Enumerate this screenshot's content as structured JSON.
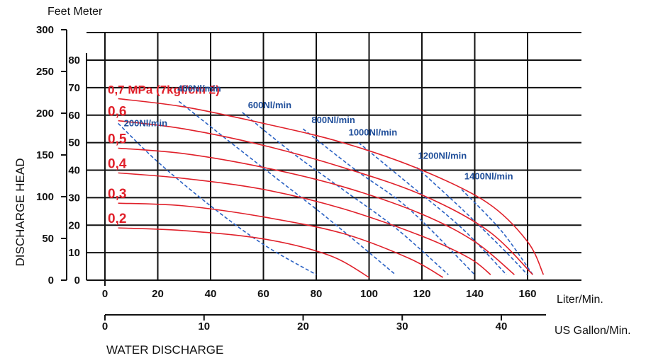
{
  "colors": {
    "pressure_curve": "#e0202a",
    "air_curve": "#2b62c4",
    "air_label": "#1f4e9a",
    "grid": "#111111"
  },
  "labels": {
    "y_title": "DISCHARGE HEAD",
    "y_unit_header": "Feet  Meter",
    "x_unit_primary": "Liter/Min.",
    "x_unit_secondary": "US Gallon/Min.",
    "x_title": "WATER DISCHARGE"
  },
  "chart_data": {
    "type": "line",
    "title": "",
    "xlabel": "WATER DISCHARGE",
    "ylabel": "DISCHARGE HEAD",
    "grid": true,
    "legend": "none",
    "axes": {
      "x_liter": {
        "unit": "Liter/Min.",
        "range": [
          0,
          160
        ],
        "ticks": [
          "0",
          "20",
          "40",
          "60",
          "80",
          "100",
          "120",
          "140",
          "160"
        ]
      },
      "x_gallon": {
        "unit": "US Gallon/Min.",
        "range": [
          0,
          40
        ],
        "ticks": [
          "0",
          "10",
          "20",
          "30",
          "40"
        ]
      },
      "y_meter": {
        "unit": "Meter",
        "range": [
          0,
          80
        ],
        "ticks": [
          "0",
          "10",
          "20",
          "30",
          "40",
          "50",
          "60",
          "70",
          "80"
        ]
      },
      "y_feet": {
        "unit": "Feet",
        "range": [
          0,
          300
        ],
        "ticks": [
          "0",
          "50",
          "100",
          "150",
          "200",
          "250",
          "300"
        ]
      }
    },
    "pressure_series": [
      {
        "name": "0,7 MPa (7kgf/cm 2)",
        "x": [
          5,
          30,
          60,
          90,
          120,
          145,
          160,
          166
        ],
        "y": [
          66,
          63,
          57,
          50,
          40,
          28,
          14,
          2
        ]
      },
      {
        "name": "0,6",
        "x": [
          5,
          30,
          60,
          90,
          120,
          145,
          162
        ],
        "y": [
          58,
          55,
          49,
          41,
          31,
          18,
          2
        ]
      },
      {
        "name": "0,5",
        "x": [
          5,
          30,
          60,
          90,
          120,
          140,
          155
        ],
        "y": [
          48,
          46,
          41,
          34,
          24,
          14,
          2
        ]
      },
      {
        "name": "0,4",
        "x": [
          5,
          30,
          60,
          90,
          120,
          138,
          146
        ],
        "y": [
          39,
          37,
          33,
          26,
          16,
          8,
          2
        ]
      },
      {
        "name": "0,3",
        "x": [
          5,
          30,
          60,
          90,
          115,
          128
        ],
        "y": [
          28,
          27,
          23,
          17,
          8,
          1
        ]
      },
      {
        "name": "0,2",
        "x": [
          5,
          30,
          60,
          85,
          100
        ],
        "y": [
          19,
          18,
          15,
          9,
          1
        ]
      }
    ],
    "air_series": [
      {
        "name": "200Nl/min",
        "x": [
          5,
          20,
          40,
          60,
          80
        ],
        "y": [
          57,
          43,
          27,
          13,
          2
        ]
      },
      {
        "name": "400Nl/min",
        "x": [
          28,
          45,
          65,
          85,
          110
        ],
        "y": [
          65,
          52,
          37,
          22,
          2
        ]
      },
      {
        "name": "600Nl/min",
        "x": [
          52,
          70,
          90,
          110,
          130
        ],
        "y": [
          61,
          47,
          33,
          19,
          2
        ]
      },
      {
        "name": "800Nl/min",
        "x": [
          75,
          95,
          115,
          140
        ],
        "y": [
          55,
          40,
          26,
          2
        ]
      },
      {
        "name": "1000Nl/min",
        "x": [
          96,
          115,
          135,
          152
        ],
        "y": [
          50,
          35,
          19,
          2
        ]
      },
      {
        "name": "1200Nl/min",
        "x": [
          118,
          135,
          150,
          160
        ],
        "y": [
          41,
          26,
          12,
          2
        ]
      },
      {
        "name": "1400Nl/min",
        "x": [
          135,
          150,
          162
        ],
        "y": [
          33,
          18,
          2
        ]
      }
    ]
  }
}
